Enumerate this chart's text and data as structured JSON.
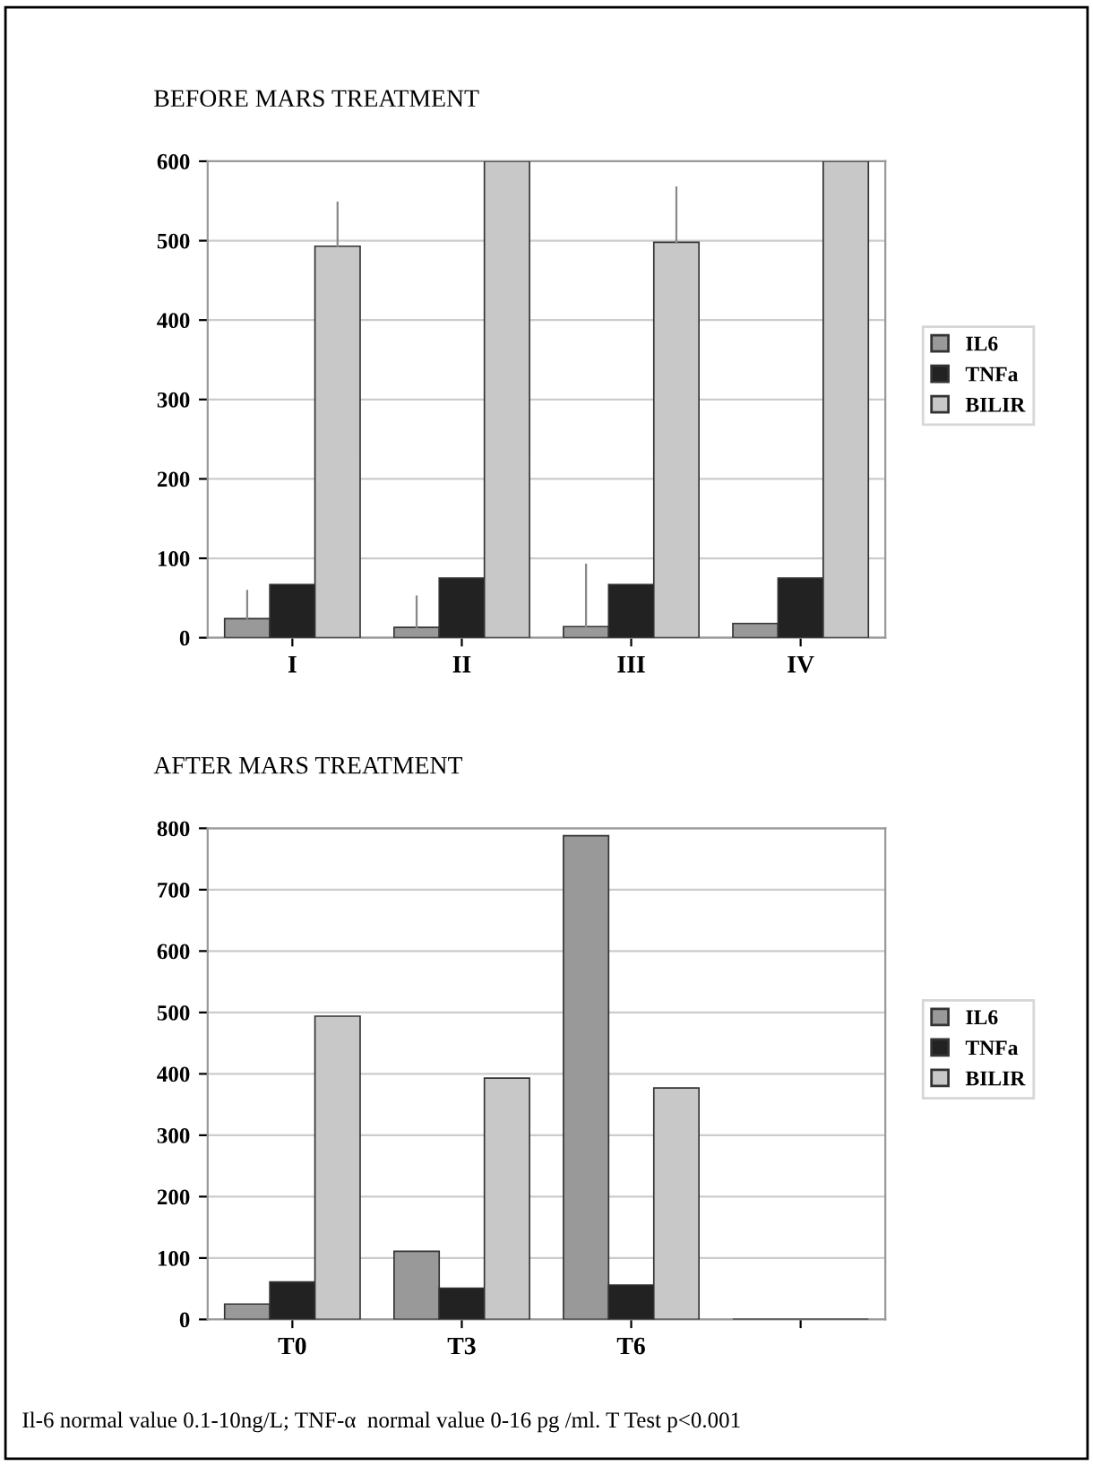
{
  "chart_data": [
    {
      "type": "bar",
      "title": "BEFORE MARS TREATMENT",
      "categories": [
        "I",
        "II",
        "III",
        "IV"
      ],
      "series": [
        {
          "name": "IL6",
          "color": "#999999",
          "values": [
            24,
            13,
            14,
            18
          ],
          "errors": [
            [
              24,
              59
            ],
            [
              13,
              52
            ],
            [
              14,
              92
            ],
            null
          ]
        },
        {
          "name": "TNFa",
          "color": "#222222",
          "values": [
            67,
            75,
            67,
            75
          ]
        },
        {
          "name": "BILIR",
          "color": "#c8c8c8",
          "values": [
            493,
            600,
            498,
            600
          ],
          "errors": [
            [
              493,
              548
            ],
            null,
            [
              498,
              567
            ],
            null
          ]
        }
      ],
      "ylim": [
        0,
        600
      ],
      "yticks": [
        0,
        100,
        200,
        300,
        400,
        500,
        600
      ],
      "grid": "y",
      "legend": "right"
    },
    {
      "type": "bar",
      "title": "AFTER MARS TREATMENT",
      "categories": [
        "T0",
        "T3",
        "T6",
        null
      ],
      "series": [
        {
          "name": "IL6",
          "color": "#999999",
          "values": [
            25,
            111,
            788,
            null
          ]
        },
        {
          "name": "TNFa",
          "color": "#222222",
          "values": [
            61,
            51,
            56,
            null
          ]
        },
        {
          "name": "BILIR",
          "color": "#c8c8c8",
          "values": [
            494,
            393,
            377,
            null
          ]
        }
      ],
      "ylim": [
        0,
        800
      ],
      "yticks": [
        0,
        100,
        200,
        300,
        400,
        500,
        600,
        700,
        800
      ],
      "grid": "y",
      "legend": "right",
      "annotations": [
        "Il-6 normal value 0.1-10ng/L; TNF-α  normal value 0-16 pg /ml. T Test p<0.001"
      ]
    }
  ]
}
